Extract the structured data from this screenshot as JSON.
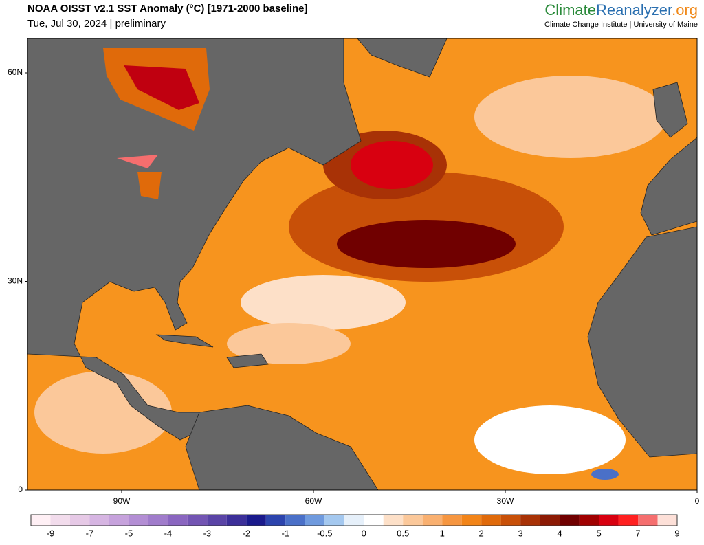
{
  "header": {
    "title": "NOAA OISST v2.1 SST Anomaly (°C) [1971-2000 baseline]",
    "subtitle": "Tue, Jul 30, 2024 | preliminary",
    "brand": [
      "Climate",
      "Reanalyzer",
      ".org"
    ],
    "institute": "Climate Change Institute | University of Maine"
  },
  "map": {
    "lat_ticks": [
      {
        "value": 60,
        "label": "60N"
      },
      {
        "value": 30,
        "label": "30N"
      },
      0
    ],
    "lon_ticks": [
      {
        "value": -90,
        "label": "90W"
      },
      {
        "value": -60,
        "label": "60W"
      },
      {
        "value": -30,
        "label": "30W"
      },
      0
    ]
  },
  "colorbar": {
    "colors": [
      "#fff0f5",
      "#f2dcec",
      "#e6c9e6",
      "#d6b5e2",
      "#c6a2dc",
      "#b38ed4",
      "#a07ccb",
      "#8a66c0",
      "#7355b3",
      "#5a44a6",
      "#3c2f99",
      "#1a1a8c",
      "#2c44ad",
      "#4a70c8",
      "#6f9ade",
      "#a4c8ef",
      "#e6f0fa",
      "#ffffff",
      "#fde0c8",
      "#fbc89a",
      "#f9b070",
      "#f69640",
      "#f28418",
      "#e06a0a",
      "#c85008",
      "#a83206",
      "#8c1a04",
      "#700000",
      "#a00000",
      "#d80010",
      "#ff2020",
      "#f56e6e",
      "#fde0d8"
    ],
    "labels": [
      -9,
      -7,
      -5,
      -4,
      -3,
      -2,
      -1,
      -0.5,
      0,
      0.5,
      1,
      2,
      3,
      4,
      5,
      7,
      9
    ]
  }
}
